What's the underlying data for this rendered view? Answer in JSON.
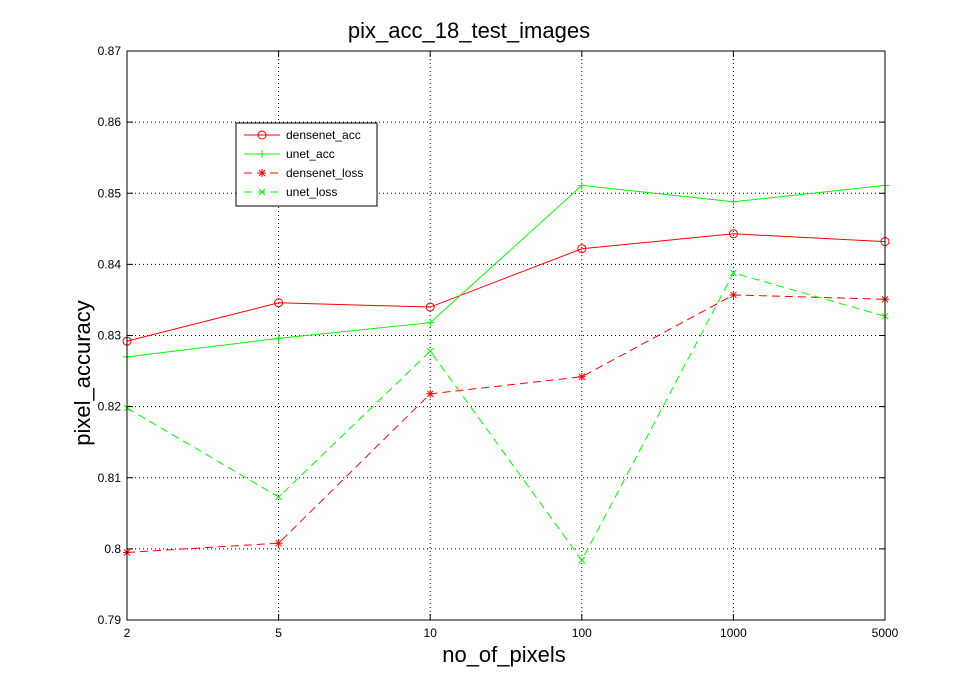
{
  "chart_data": {
    "type": "line",
    "title": "pix_acc_18_test_images",
    "xlabel": "no_of_pixels",
    "ylabel": "pixel_accuracy",
    "categories": [
      "2",
      "5",
      "10",
      "100",
      "1000",
      "5000"
    ],
    "ylim": [
      0.79,
      0.87
    ],
    "yticks": [
      "0.79",
      "0.8",
      "0.81",
      "0.82",
      "0.83",
      "0.84",
      "0.85",
      "0.86",
      "0.87"
    ],
    "grid": true,
    "legend_position": "top-left",
    "series": [
      {
        "name": "densenet_acc",
        "color": "#ff0000",
        "dash": "solid",
        "marker": "circle",
        "values": [
          0.8292,
          0.8346,
          0.834,
          0.8422,
          0.8443,
          0.8432
        ]
      },
      {
        "name": "unet_acc",
        "color": "#00ff00",
        "dash": "solid",
        "marker": "plus",
        "values": [
          0.827,
          0.8296,
          0.8318,
          0.8511,
          0.8488,
          0.8511
        ]
      },
      {
        "name": "densenet_loss",
        "color": "#ff0000",
        "dash": "dashed",
        "marker": "star",
        "values": [
          0.7995,
          0.8008,
          0.8218,
          0.8242,
          0.8357,
          0.8351
        ]
      },
      {
        "name": "unet_loss",
        "color": "#00ff00",
        "dash": "dashed",
        "marker": "x",
        "values": [
          0.8198,
          0.8073,
          0.8278,
          0.7984,
          0.8388,
          0.8327
        ]
      }
    ]
  }
}
